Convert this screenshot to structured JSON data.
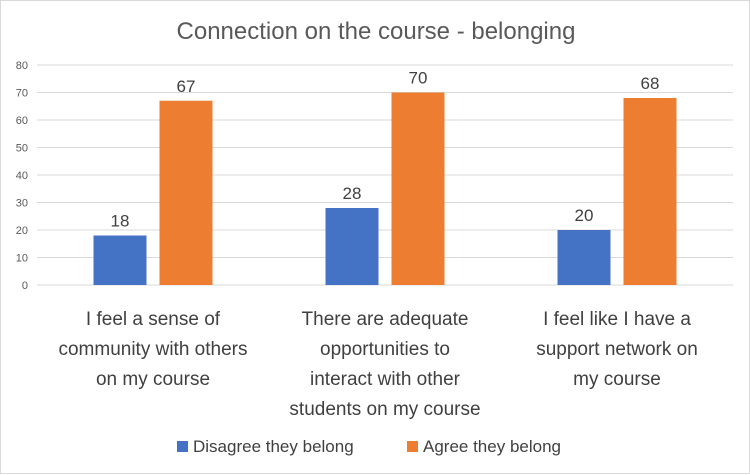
{
  "chart_data": {
    "type": "bar",
    "title": "Connection on the course - belonging",
    "categories": [
      [
        "I feel a sense of",
        "community with others",
        "on my course"
      ],
      [
        "There are adequate",
        "opportunities to",
        "interact with other",
        "students on my course"
      ],
      [
        "I feel like I have a",
        "support network on",
        "my course"
      ]
    ],
    "series": [
      {
        "name": "Disagree they belong",
        "color": "#4472C4",
        "values": [
          18,
          28,
          20
        ]
      },
      {
        "name": "Agree they belong",
        "color": "#ED7D31",
        "values": [
          67,
          70,
          68
        ]
      }
    ],
    "yticks": [
      0,
      10,
      20,
      30,
      40,
      50,
      60,
      70,
      80
    ],
    "ylim": [
      0,
      80
    ],
    "grid": true,
    "legend_position": "bottom"
  }
}
